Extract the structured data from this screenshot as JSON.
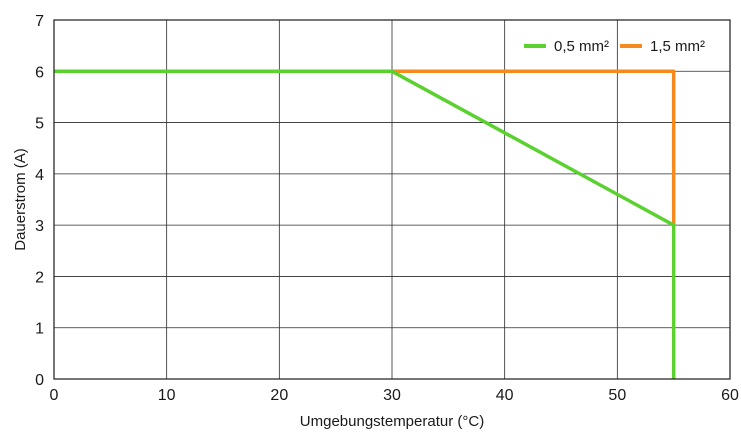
{
  "chart_data": {
    "type": "line",
    "xlabel": "Umgebungstemperatur (°C)",
    "ylabel": "Dauerstrom (A)",
    "xlim": [
      0,
      60
    ],
    "ylim": [
      0,
      7
    ],
    "xticks": [
      0,
      10,
      20,
      30,
      40,
      50,
      60
    ],
    "yticks": [
      0,
      1,
      2,
      3,
      4,
      5,
      6,
      7
    ],
    "grid": true,
    "legend_position": "top-right",
    "series": [
      {
        "name": "0,5 mm²",
        "color": "#5ad12e",
        "points": [
          [
            0,
            6
          ],
          [
            30,
            6
          ],
          [
            55,
            3
          ],
          [
            55,
            0
          ]
        ]
      },
      {
        "name": "1,5 mm²",
        "color": "#f58a1f",
        "points": [
          [
            0,
            6
          ],
          [
            55,
            6
          ],
          [
            55,
            3
          ]
        ]
      }
    ]
  }
}
